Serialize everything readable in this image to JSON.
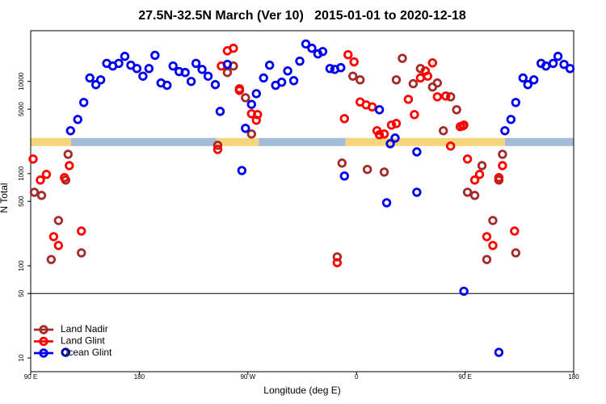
{
  "chart_data": {
    "type": "scatter",
    "title": "27.5N-32.5N March (Ver 10)   2015-01-01 to 2020-12-18",
    "xlabel": "Longitude (deg E)",
    "ylabel": "N Total",
    "xlim": [
      90,
      540
    ],
    "xticks": [
      {
        "value": 90,
        "label": "90 E"
      },
      180,
      {
        "value": 270,
        "label": "90 W"
      },
      {
        "value": 360,
        "label": "0"
      },
      {
        "value": 450,
        "label": "90 E"
      },
      {
        "value": 540,
        "label": "180"
      }
    ],
    "ylim": [
      7.1,
      35500
    ],
    "yscale": "log",
    "yticks": [
      10,
      50,
      100,
      500,
      1000,
      5000,
      10000
    ],
    "hline": 50,
    "legend": "bottom-left",
    "band": {
      "value": 2200,
      "segments": [
        {
          "x0": 90,
          "x1": 123.5,
          "color": "#f6d57c"
        },
        {
          "x0": 123.5,
          "x1": 244,
          "color": "#a5bcd9"
        },
        {
          "x0": 244,
          "x1": 279,
          "color": "#f6d57c"
        },
        {
          "x0": 279,
          "x1": 351,
          "color": "#a5bcd9"
        },
        {
          "x0": 351,
          "x1": 483,
          "color": "#f6d57c"
        },
        {
          "x0": 483,
          "x1": 540,
          "color": "#a5bcd9"
        }
      ]
    },
    "series": [
      {
        "name": "Land Nadir",
        "color": "#a52a2a",
        "x": [
          93,
          99,
          107,
          113,
          119,
          121,
          132,
          245,
          253,
          258,
          268,
          273,
          344,
          348,
          357,
          363,
          369,
          383,
          393,
          398,
          407,
          413,
          423,
          427,
          432,
          438,
          443,
          448,
          452,
          458,
          464,
          468,
          473,
          478,
          481,
          492
        ],
        "values": [
          628,
          580,
          117,
          310,
          851,
          1620,
          138,
          2030,
          12500,
          14700,
          6650,
          2690,
          125,
          1300,
          11400,
          10400,
          1110,
          1040,
          10400,
          17800,
          9450,
          13800,
          8700,
          9630,
          2920,
          6810,
          4930,
          3290,
          628,
          580,
          1220,
          117,
          310,
          851,
          1620,
          138
        ]
      },
      {
        "name": "Land Glint",
        "color": "#ff0000",
        "x": [
          92,
          98,
          103,
          109,
          113,
          118,
          122,
          132,
          245,
          248,
          253,
          258,
          263,
          263,
          273,
          277,
          278,
          344,
          350,
          353,
          358,
          363,
          368,
          373,
          377,
          379,
          383,
          389,
          393,
          403,
          408,
          413,
          417,
          419,
          423,
          427,
          434,
          438,
          446,
          449,
          452,
          458,
          462,
          468,
          473,
          478,
          481,
          491
        ],
        "values": [
          1440,
          851,
          980,
          207,
          166,
          904,
          1220,
          238,
          1830,
          14700,
          21500,
          22900,
          8340,
          7990,
          4460,
          3790,
          4370,
          108,
          3950,
          19500,
          16300,
          5990,
          5570,
          5290,
          2920,
          2640,
          2690,
          3360,
          3500,
          6390,
          4370,
          10900,
          13000,
          11400,
          15900,
          6810,
          6940,
          1990,
          3230,
          3360,
          1440,
          851,
          980,
          207,
          166,
          904,
          1220,
          238
        ]
      },
      {
        "name": "Ocean Glint",
        "color": "#0000ee",
        "x": [
          119,
          123,
          129,
          134,
          139,
          144,
          148,
          153,
          158,
          163,
          168,
          173,
          178,
          183,
          188,
          193,
          198,
          203,
          208,
          213,
          218,
          223,
          227,
          232,
          237,
          243,
          247,
          253,
          265,
          268,
          273,
          277,
          283,
          288,
          293,
          298,
          303,
          308,
          313,
          318,
          323,
          328,
          332,
          338,
          342,
          347,
          350,
          379,
          385,
          388,
          392,
          410,
          410,
          449,
          478,
          483,
          488,
          492,
          498,
          502,
          507,
          513,
          517,
          523,
          527,
          532,
          537
        ],
        "values": [
          11.5,
          2920,
          3870,
          5910,
          10900,
          9230,
          10400,
          15700,
          14700,
          15700,
          18700,
          15000,
          13800,
          11400,
          13800,
          19200,
          9630,
          9080,
          14700,
          12800,
          12500,
          10000,
          15700,
          13500,
          11400,
          9230,
          4730,
          15300,
          1080,
          3100,
          5640,
          7370,
          10900,
          15000,
          9080,
          9820,
          13000,
          10200,
          16600,
          25500,
          22900,
          19900,
          21100,
          13800,
          13500,
          14100,
          942,
          4930,
          483,
          2110,
          2430,
          1720,
          628,
          53,
          11.5,
          2920,
          3870,
          5910,
          10900,
          9230,
          10400,
          15700,
          14700,
          15700,
          18700,
          15300,
          13800
        ]
      }
    ]
  }
}
